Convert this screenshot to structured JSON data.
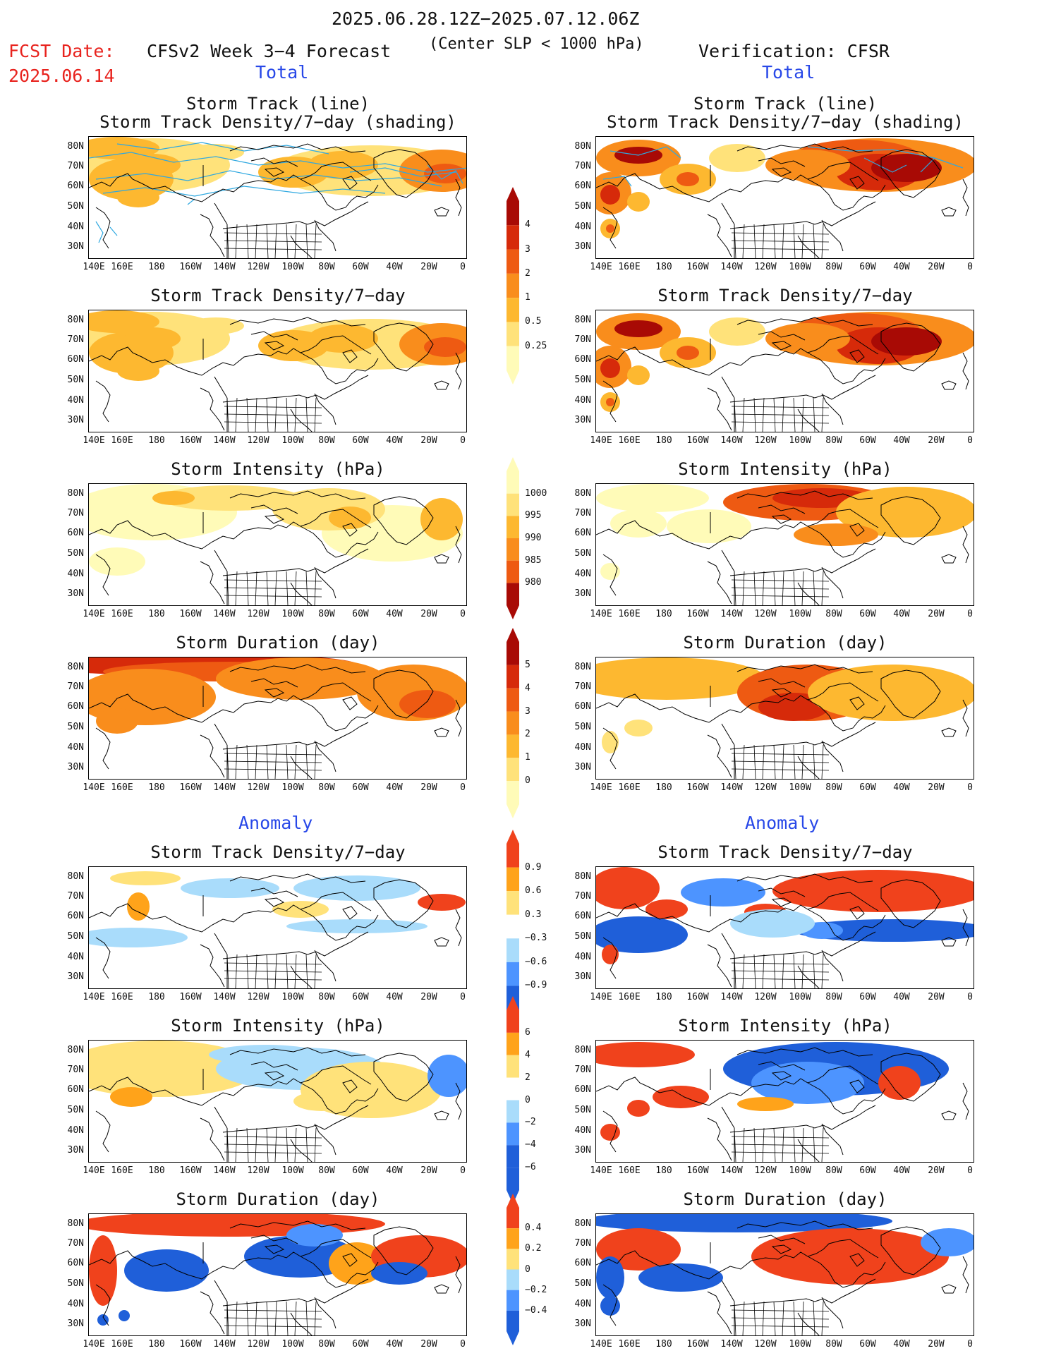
{
  "header": {
    "date_range": "2025.06.28.12Z−2025.07.12.06Z",
    "fcst_label": "FCST Date:",
    "fcst_date": "2025.06.14",
    "model_title": "CFSv2 Week 3−4 Forecast",
    "criterion": "(Center SLP < 1000 hPa)",
    "verification": "Verification: CFSR"
  },
  "sections": {
    "total_left": "Total",
    "total_right": "Total",
    "anomaly_left": "Anomaly",
    "anomaly_right": "Anomaly"
  },
  "panel_titles": {
    "track_line_1": "Storm Track (line)",
    "track_line_2": "Storm Track Density/7−day (shading)",
    "density": "Storm Track Density/7−day",
    "intensity": "Storm Intensity (hPa)",
    "duration": "Storm Duration (day)"
  },
  "axes": {
    "lat_ticks": [
      "80N",
      "70N",
      "60N",
      "50N",
      "40N",
      "30N"
    ],
    "lon_ticks": [
      "140E",
      "160E",
      "180",
      "160W",
      "140W",
      "120W",
      "100W",
      "80W",
      "60W",
      "40W",
      "20W",
      "0"
    ]
  },
  "colorbars": {
    "density_total": [
      "4",
      "3",
      "2",
      "1",
      "0.5",
      "0.25"
    ],
    "intensity_total": [
      "1000",
      "995",
      "990",
      "985",
      "980"
    ],
    "duration_total": [
      "5",
      "4",
      "3",
      "2",
      "1",
      "0"
    ],
    "density_anomaly": [
      "0.9",
      "0.6",
      "0.3",
      "−0.3",
      "−0.6",
      "−0.9"
    ],
    "intensity_anomaly": [
      "6",
      "4",
      "2",
      "0",
      "−2",
      "−4",
      "−6"
    ],
    "duration_anomaly": [
      "0.4",
      "0.2",
      "0",
      "−0.2",
      "−0.4"
    ]
  },
  "palette": {
    "total": [
      "#fffbb8",
      "#ffe27a",
      "#fdb830",
      "#f98d1c",
      "#ee5a12",
      "#d62a0a",
      "#a80a05"
    ],
    "anomaly": [
      "#1f5fd9",
      "#4d94ff",
      "#a9dcfb",
      "#ffffff",
      "#ffe27a",
      "#ffa31a",
      "#f0421c"
    ],
    "track_line": "#2fa8e0"
  }
}
